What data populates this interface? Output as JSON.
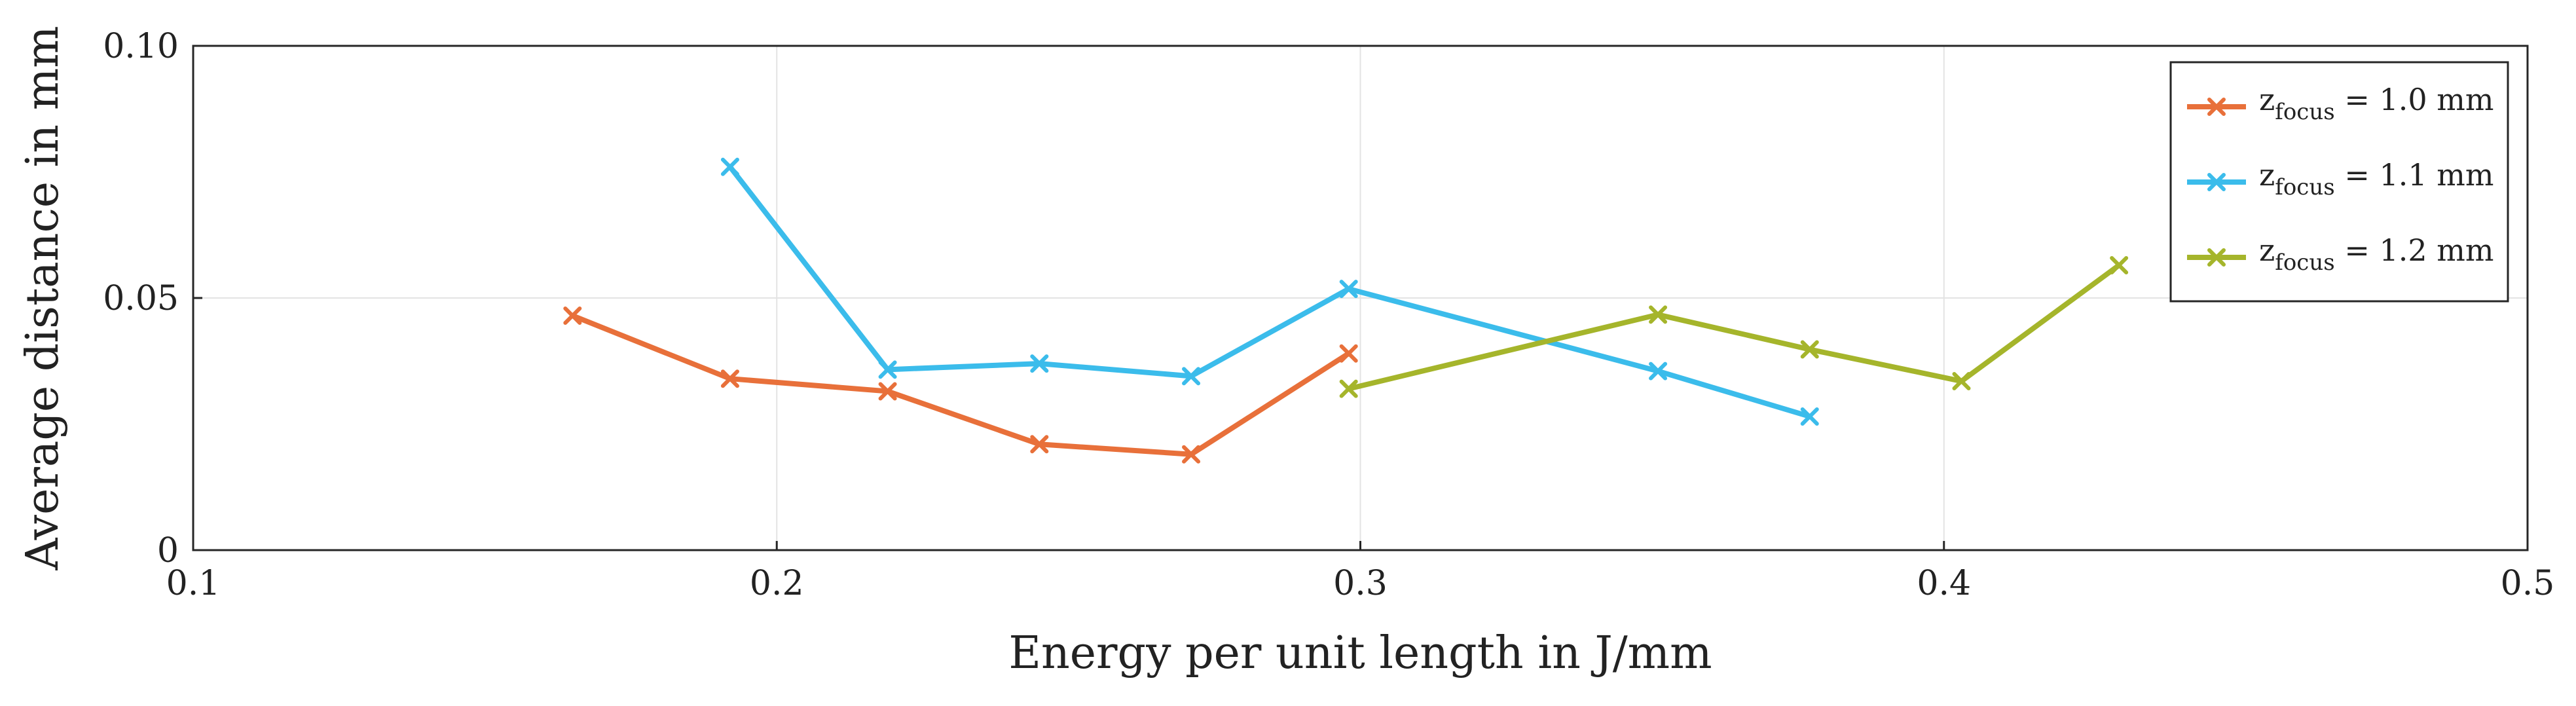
{
  "chart_data": {
    "type": "line",
    "title": "",
    "xlabel": "Energy per unit length in J/mm",
    "ylabel": "Average distance in mm",
    "xlim": [
      0.1,
      0.5
    ],
    "ylim": [
      0,
      0.1
    ],
    "xticks": [
      0.1,
      0.2,
      0.3,
      0.4,
      0.5
    ],
    "xtick_labels": [
      "0.1",
      "0.2",
      "0.3",
      "0.4",
      "0.5"
    ],
    "yticks": [
      0,
      0.05,
      0.1
    ],
    "ytick_labels": [
      "0",
      "0.05",
      "0.10"
    ],
    "grid": true,
    "legend_position": "top-right",
    "series": [
      {
        "name": "z_focus = 1.0 mm",
        "legend_main": "z",
        "legend_sub": "focus",
        "legend_rest": " = 1.0 mm",
        "color": "#E8703A",
        "marker": "x",
        "x": [
          0.165,
          0.192,
          0.219,
          0.245,
          0.271,
          0.298
        ],
        "y": [
          0.0465,
          0.034,
          0.0315,
          0.021,
          0.019,
          0.039
        ]
      },
      {
        "name": "z_focus = 1.1 mm",
        "legend_main": "z",
        "legend_sub": "focus",
        "legend_rest": " = 1.1 mm",
        "color": "#3BBCEB",
        "marker": "x",
        "x": [
          0.192,
          0.219,
          0.245,
          0.271,
          0.298,
          0.351,
          0.377
        ],
        "y": [
          0.076,
          0.0358,
          0.037,
          0.0345,
          0.0518,
          0.0355,
          0.0265
        ]
      },
      {
        "name": "z_focus = 1.2 mm",
        "legend_main": "z",
        "legend_sub": "focus",
        "legend_rest": " = 1.2 mm",
        "color": "#A5B52B",
        "marker": "x",
        "x": [
          0.298,
          0.351,
          0.377,
          0.403,
          0.43
        ],
        "y": [
          0.032,
          0.0467,
          0.0398,
          0.0335,
          0.0565
        ]
      }
    ]
  }
}
